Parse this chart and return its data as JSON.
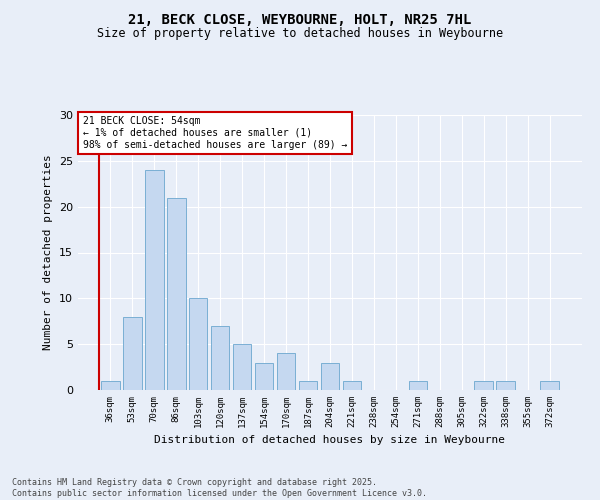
{
  "title_line1": "21, BECK CLOSE, WEYBOURNE, HOLT, NR25 7HL",
  "title_line2": "Size of property relative to detached houses in Weybourne",
  "xlabel": "Distribution of detached houses by size in Weybourne",
  "ylabel": "Number of detached properties",
  "categories": [
    "36sqm",
    "53sqm",
    "70sqm",
    "86sqm",
    "103sqm",
    "120sqm",
    "137sqm",
    "154sqm",
    "170sqm",
    "187sqm",
    "204sqm",
    "221sqm",
    "238sqm",
    "254sqm",
    "271sqm",
    "288sqm",
    "305sqm",
    "322sqm",
    "338sqm",
    "355sqm",
    "372sqm"
  ],
  "values": [
    1,
    8,
    24,
    21,
    10,
    7,
    5,
    3,
    4,
    1,
    3,
    1,
    0,
    0,
    1,
    0,
    0,
    1,
    1,
    0,
    1
  ],
  "bar_color": "#c5d8f0",
  "bar_edge_color": "#7aafd4",
  "vline_color": "#cc0000",
  "vline_x": 0.5,
  "annotation_text": "21 BECK CLOSE: 54sqm\n← 1% of detached houses are smaller (1)\n98% of semi-detached houses are larger (89) →",
  "annotation_box_color": "#ffffff",
  "annotation_box_edge": "#cc0000",
  "ylim": [
    0,
    30
  ],
  "yticks": [
    0,
    5,
    10,
    15,
    20,
    25,
    30
  ],
  "background_color": "#e8eef8",
  "footer_line1": "Contains HM Land Registry data © Crown copyright and database right 2025.",
  "footer_line2": "Contains public sector information licensed under the Open Government Licence v3.0."
}
